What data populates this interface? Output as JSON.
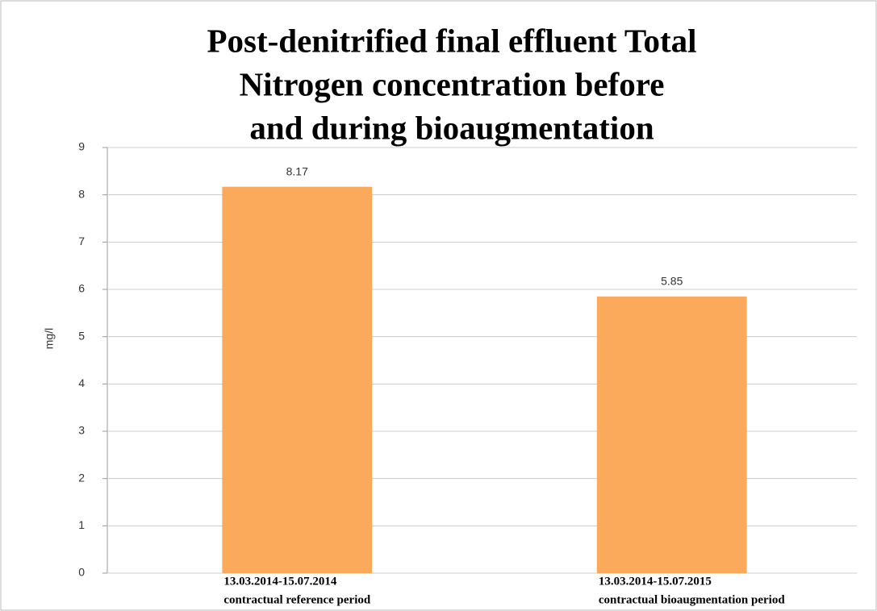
{
  "chart_data": {
    "type": "bar",
    "title": [
      "Post-denitrified final effluent Total",
      "Nitrogen concentration before",
      "and during bioaugmentation"
    ],
    "ylabel": "mg/l",
    "categories": [
      [
        "13.03.2014-15.07.2014",
        "contractual reference period"
      ],
      [
        "13.03.2014-15.07.2015",
        "contractual bioaugmentation period"
      ]
    ],
    "values": [
      8.17,
      5.85
    ],
    "color": "#fba95a",
    "ylim": [
      0,
      9
    ],
    "yticks": [
      0,
      1,
      2,
      3,
      4,
      5,
      6,
      7,
      8,
      9
    ],
    "grid": true
  }
}
